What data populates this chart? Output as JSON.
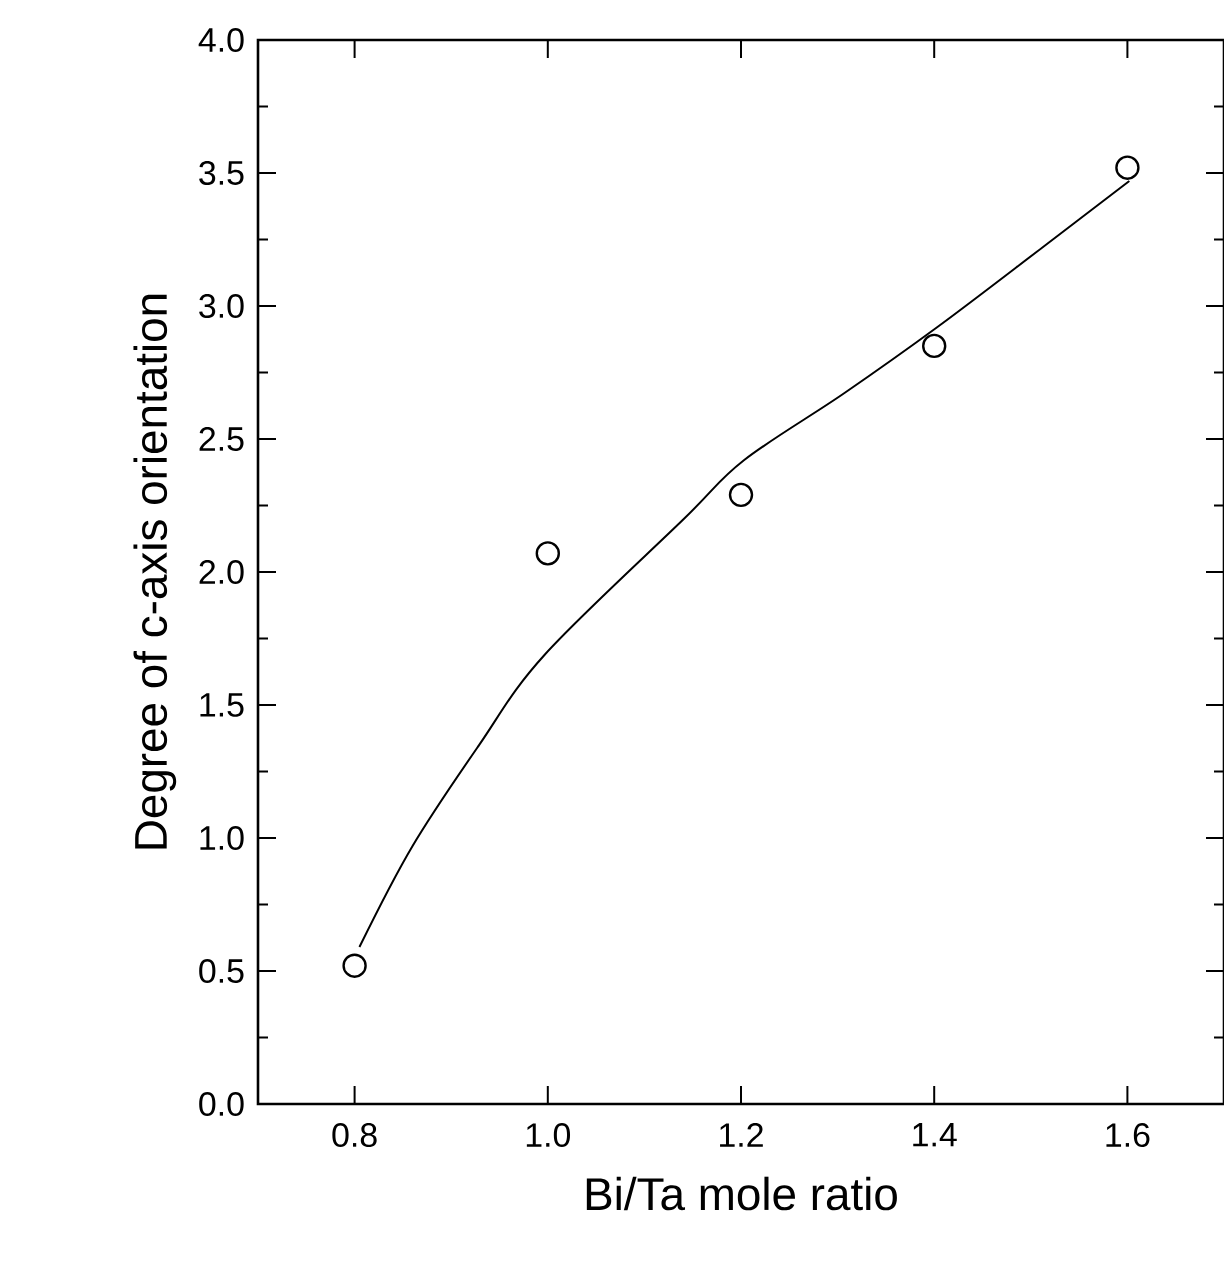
{
  "chart_data": {
    "type": "scatter",
    "xlabel": "Bi/Ta mole ratio",
    "ylabel": "Degree of c-axis orientation",
    "xlim": [
      0.7,
      1.7
    ],
    "ylim": [
      0,
      4
    ],
    "grid": false,
    "xticks": [
      {
        "value": 0.8,
        "label": "0.8"
      },
      {
        "value": 1.0,
        "label": "1.0"
      },
      {
        "value": 1.2,
        "label": "1.2"
      },
      {
        "value": 1.4,
        "label": "1.4"
      },
      {
        "value": 1.6,
        "label": "1.6"
      }
    ],
    "yticks": [
      {
        "value": 0.0,
        "label": "0.0"
      },
      {
        "value": 0.25,
        "label": null
      },
      {
        "value": 0.5,
        "label": "0.5"
      },
      {
        "value": 0.75,
        "label": null
      },
      {
        "value": 1.0,
        "label": "1.0"
      },
      {
        "value": 1.25,
        "label": null
      },
      {
        "value": 1.5,
        "label": "1.5"
      },
      {
        "value": 1.75,
        "label": null
      },
      {
        "value": 2.0,
        "label": "2.0"
      },
      {
        "value": 2.25,
        "label": null
      },
      {
        "value": 2.5,
        "label": "2.5"
      },
      {
        "value": 2.75,
        "label": null
      },
      {
        "value": 3.0,
        "label": "3.0"
      },
      {
        "value": 3.25,
        "label": null
      },
      {
        "value": 3.5,
        "label": "3.5"
      },
      {
        "value": 3.75,
        "label": null
      },
      {
        "value": 4.0,
        "label": "4.0"
      }
    ],
    "series": [
      {
        "marker": "circle",
        "color": "#000000",
        "x": [
          0.8,
          1.0,
          1.2,
          1.4,
          1.6
        ],
        "values": [
          0.52,
          2.07,
          2.29,
          2.85,
          3.52
        ]
      },
      {
        "type": "line",
        "marker": "none",
        "color": "#000000",
        "x": [
          0.805,
          0.86,
          0.929,
          0.997,
          1.141,
          1.203,
          1.306,
          1.403,
          1.512,
          1.602
        ],
        "values": [
          0.59,
          0.97,
          1.35,
          1.69,
          2.2,
          2.42,
          2.67,
          2.92,
          3.22,
          3.47
        ]
      }
    ]
  }
}
